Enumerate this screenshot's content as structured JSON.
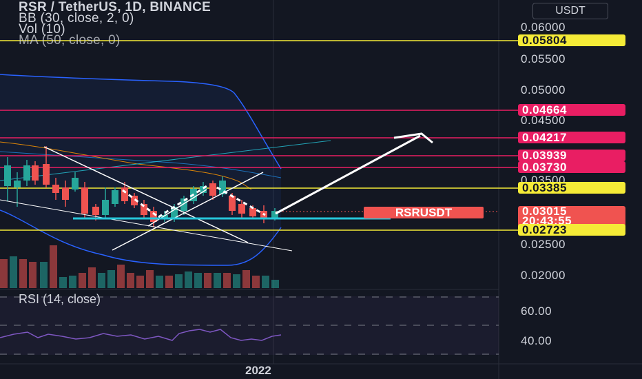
{
  "legend": {
    "title": "RSR / TetherUS, 1D, BINANCE",
    "bb": "BB (30, close, 2, 0)",
    "vol": "Vol (10)",
    "ma": "MA (50, close, 0)"
  },
  "currency": "USDT",
  "price_axis": {
    "labels": [
      "0.06000",
      "0.05500",
      "0.05000",
      "0.04500",
      "0.03500",
      "0.02500",
      "0.02000"
    ]
  },
  "levels": [
    {
      "value": "0.05804",
      "color": "#f5eb37",
      "kind": "yellow"
    },
    {
      "value": "0.04664",
      "color": "#e91e63",
      "kind": "pink"
    },
    {
      "value": "0.04217",
      "color": "#e91e63",
      "kind": "pink"
    },
    {
      "value": "0.03939",
      "color": "#e91e63",
      "kind": "pink"
    },
    {
      "value": "0.03730",
      "color": "#e91e63",
      "kind": "pink"
    },
    {
      "value": "0.03385",
      "color": "#f5eb37",
      "kind": "yellow"
    },
    {
      "value": "0.02723",
      "color": "#f5eb37",
      "kind": "yellow"
    }
  ],
  "last_price": {
    "value": "0.03015",
    "countdown": "20:43:55",
    "symbol": "RSRUSDT",
    "color": "#f05350"
  },
  "rsi": {
    "legend": "RSI (14, close)",
    "labels": [
      "60.00",
      "40.00"
    ]
  },
  "time_axis": {
    "year": "2022"
  },
  "colors": {
    "background": "#131722",
    "bull": "#26a69a",
    "bear": "#ef5350",
    "bb_band": "#2962ff",
    "ma": "#ff9800"
  }
}
